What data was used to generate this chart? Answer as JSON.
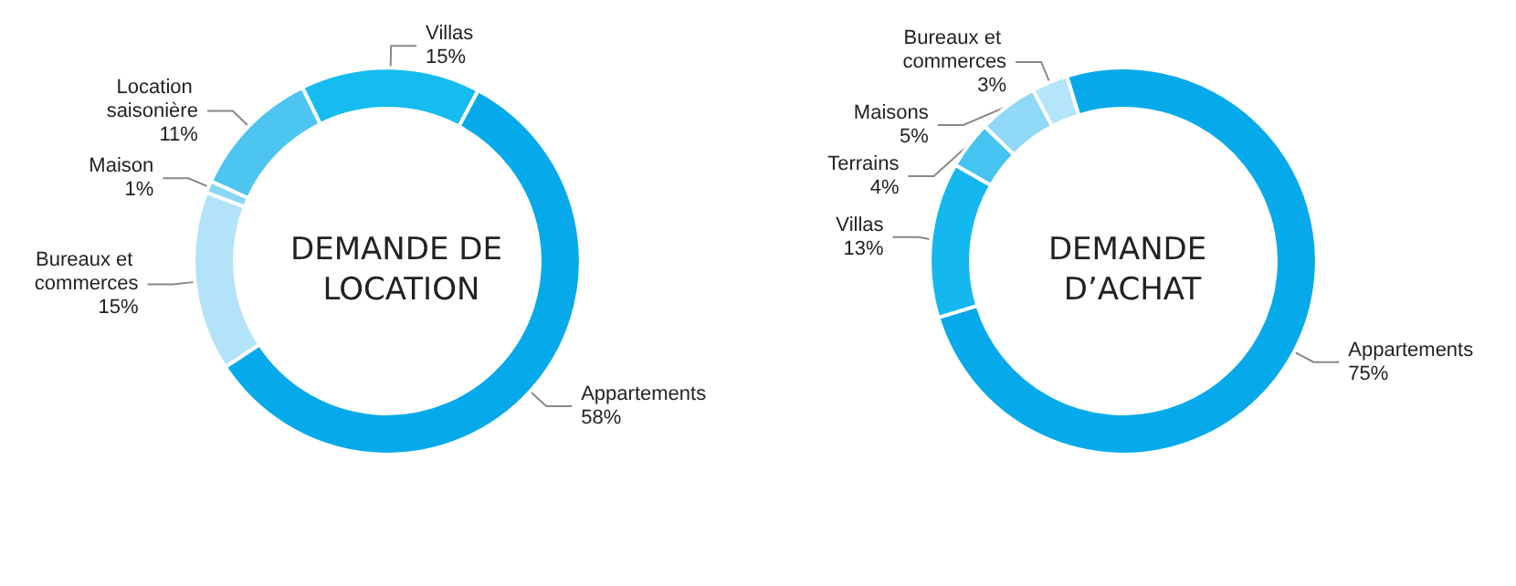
{
  "chart_data": [
    {
      "type": "donut",
      "title": "DEMANDE DE LOCATION",
      "categories": [
        "Appartements",
        "Bureaux et commerces",
        "Maison",
        "Location saisonière",
        "Villas"
      ],
      "values": [
        58,
        15,
        1,
        11,
        15
      ],
      "value_labels": [
        "58%",
        "15%",
        "1%",
        "11%",
        "15%"
      ],
      "colors": [
        "#06aaea",
        "#b2e3f9",
        "#8ad6f5",
        "#4cc6f1",
        "#14bcef"
      ]
    },
    {
      "type": "donut",
      "title": "DEMANDE D’ACHAT",
      "categories": [
        "Appartements",
        "Villas",
        "Terrains",
        "Maisons",
        "Bureaux et commerces"
      ],
      "values": [
        75,
        13,
        4,
        5,
        3
      ],
      "value_labels": [
        "75%",
        "13%",
        "4%",
        "5%",
        "3%"
      ],
      "colors": [
        "#06aaea",
        "#14b8ee",
        "#46c4f1",
        "#8fd8f6",
        "#b4e5fa"
      ]
    }
  ]
}
